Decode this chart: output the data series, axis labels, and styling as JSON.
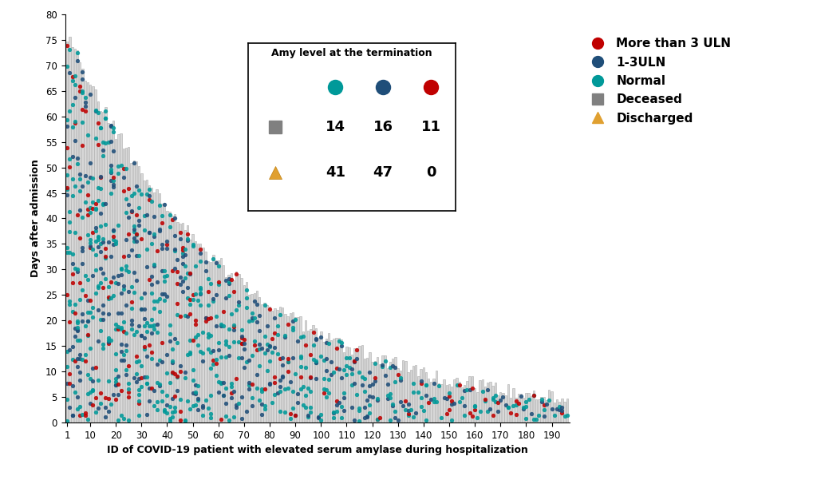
{
  "n_patients": 196,
  "color_normal": "#009999",
  "color_1_3uln": "#1F4E79",
  "color_gt3uln": "#C00000",
  "color_bar_fill": "#D8D8D8",
  "color_bar_edge": "#AAAAAA",
  "color_deceased_marker": "#808080",
  "color_discharged_marker": "#E0A030",
  "xlabel": "ID of COVID-19 patient with elevated serum amylase during hospitalization",
  "ylabel": "Days after admission",
  "ylim_max": 80,
  "yticks": [
    0,
    5,
    10,
    15,
    20,
    25,
    30,
    35,
    40,
    45,
    50,
    55,
    60,
    65,
    70,
    75,
    80
  ],
  "xticks": [
    1,
    10,
    20,
    30,
    40,
    50,
    60,
    70,
    80,
    90,
    100,
    110,
    120,
    130,
    140,
    150,
    160,
    170,
    180,
    190
  ],
  "inset_title": "Amy level at the termination",
  "deceased_counts": [
    14,
    16,
    11
  ],
  "discharged_counts": [
    41,
    47,
    0
  ],
  "right_legend": [
    {
      "label": "More than 3 ULN",
      "color": "#C00000",
      "marker": "o"
    },
    {
      "label": "1-3ULN",
      "color": "#1F4E79",
      "marker": "o"
    },
    {
      "label": "Normal",
      "color": "#009999",
      "marker": "o"
    },
    {
      "label": "Deceased",
      "color": "#808080",
      "marker": "s"
    },
    {
      "label": "Discharged",
      "color": "#E0A030",
      "marker": "^"
    }
  ]
}
